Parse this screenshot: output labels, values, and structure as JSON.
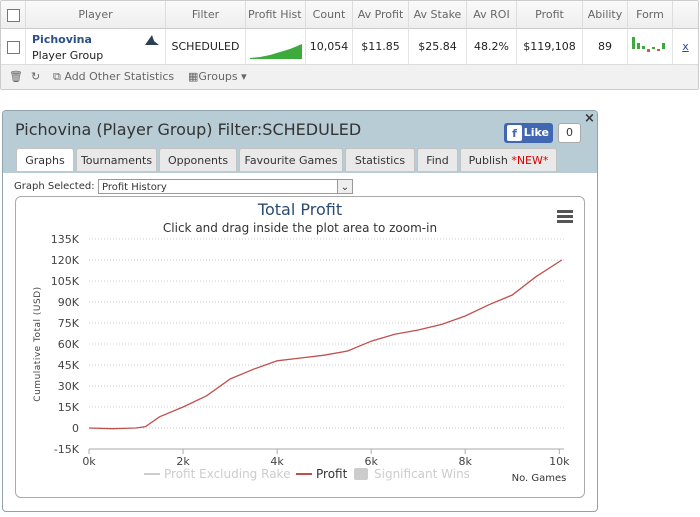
{
  "table": {
    "headers": [
      "Player",
      "Filter",
      "Profit Hist",
      "Count",
      "Av Profit",
      "Av Stake",
      "Av ROI",
      "Profit",
      "Ability",
      "Form"
    ],
    "row": {
      "player": "Pichovina",
      "group": "Player Group",
      "filter": "SCHEDULED",
      "count": "10,054",
      "av_profit": "$11.85",
      "av_stake": "$25.84",
      "av_roi": "48.2%",
      "profit": "$119,108",
      "ability": "89",
      "remove": "x"
    },
    "toolbar": {
      "add": "Add Other Statistics",
      "groups": "Groups"
    }
  },
  "dialog": {
    "title": "Pichovina (Player Group) Filter:SCHEDULED",
    "like": "Like",
    "like_count": "0",
    "tabs": [
      "Graphs",
      "Tournaments",
      "Opponents",
      "Favourite Games",
      "Statistics",
      "Find",
      "Publish"
    ],
    "new_badge": "*NEW*",
    "graph_label": "Graph Selected:",
    "graph_selected": "Profit History"
  },
  "chart_data": {
    "type": "line",
    "title": "Total Profit",
    "subtitle": "Click and drag inside the plot area to zoom-in",
    "y_label": "Cumulative Total (USD)",
    "x_label": "No. Games",
    "x": [
      0,
      500,
      1000,
      1200,
      1500,
      2000,
      2500,
      3000,
      3500,
      4000,
      4500,
      5000,
      5500,
      6000,
      6500,
      7000,
      7500,
      8000,
      8500,
      9000,
      9500,
      10054
    ],
    "series": [
      {
        "name": "Profit Excluding Rake",
        "visible": false
      },
      {
        "name": "Profit",
        "visible": true,
        "color": "#c0504d",
        "values": [
          0,
          -500,
          0,
          1000,
          8000,
          15000,
          23000,
          35000,
          42000,
          48000,
          50000,
          52000,
          55000,
          62000,
          67000,
          70000,
          74000,
          80000,
          88000,
          95000,
          108000,
          120000
        ]
      },
      {
        "name": "Significant Wins",
        "visible": false
      }
    ],
    "xlim": [
      0,
      10100
    ],
    "ylim": [
      -15000,
      135000
    ],
    "xticks": [
      {
        "value": 0,
        "label": "0k"
      },
      {
        "value": 2000,
        "label": "2k"
      },
      {
        "value": 4000,
        "label": "4k"
      },
      {
        "value": 6000,
        "label": "6k"
      },
      {
        "value": 8000,
        "label": "8k"
      },
      {
        "value": 10000,
        "label": "10k"
      }
    ],
    "yticks": [
      {
        "value": -15000,
        "label": "-15K"
      },
      0,
      {
        "value": 15000,
        "label": "15K"
      },
      {
        "value": 30000,
        "label": "30K"
      },
      {
        "value": 45000,
        "label": "45K"
      },
      {
        "value": 60000,
        "label": "60K"
      },
      {
        "value": 75000,
        "label": "75K"
      },
      {
        "value": 90000,
        "label": "90K"
      },
      {
        "value": 105000,
        "label": "105K"
      },
      {
        "value": 120000,
        "label": "120K"
      },
      {
        "value": 135000,
        "label": "135K"
      }
    ],
    "grid": true
  }
}
